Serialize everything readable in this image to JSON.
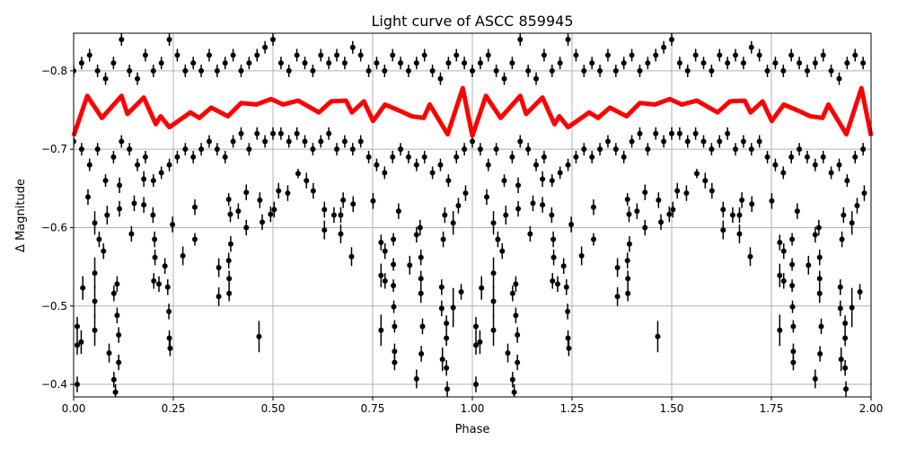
{
  "chart_data": {
    "type": "scatter",
    "title": "Light curve of ASCC 859945",
    "xlabel": "Phase",
    "ylabel": "Δ Magnitude",
    "xlim": [
      0,
      2
    ],
    "ylim": [
      -0.848,
      -0.384
    ],
    "y_inverted": true,
    "grid": true,
    "x_ticks": [
      "0.00",
      "0.25",
      "0.50",
      "0.75",
      "1.00",
      "1.25",
      "1.50",
      "1.75",
      "2.00"
    ],
    "y_ticks": [
      "−0.8",
      "−0.7",
      "−0.6",
      "−0.5",
      "−0.4"
    ],
    "y_tick_values": [
      -0.8,
      -0.7,
      -0.6,
      -0.5,
      -0.4
    ],
    "x_tick_values": [
      0,
      0.25,
      0.5,
      0.75,
      1,
      1.25,
      1.5,
      1.75,
      2
    ],
    "phase_repeated": true,
    "colors": {
      "points": "#000000",
      "model": "#ff0000",
      "grid": "#b0b0b0"
    },
    "points_phase_mag_err": [
      [
        0.009,
        -0.474,
        0.012
      ],
      [
        0.009,
        -0.45,
        0.012
      ],
      [
        0.019,
        -0.454,
        0.015
      ],
      [
        0.009,
        -0.4,
        0.01
      ],
      [
        0.023,
        -0.523,
        0.015
      ],
      [
        0.053,
        -0.542,
        0.02
      ],
      [
        0.053,
        -0.506,
        0.02
      ],
      [
        0.053,
        -0.469,
        0.02
      ],
      [
        0.036,
        -0.639,
        0.01
      ],
      [
        0.053,
        -0.606,
        0.015
      ],
      [
        0.064,
        -0.585,
        0.01
      ],
      [
        0.075,
        -0.57,
        0.01
      ],
      [
        0.084,
        -0.616,
        0.012
      ],
      [
        0.089,
        -0.44,
        0.012
      ],
      [
        0.101,
        -0.516,
        0.01
      ],
      [
        0.109,
        -0.528,
        0.01
      ],
      [
        0.109,
        -0.488,
        0.01
      ],
      [
        0.113,
        -0.463,
        0.01
      ],
      [
        0.113,
        -0.428,
        0.01
      ],
      [
        0.101,
        -0.406,
        0.01
      ],
      [
        0.105,
        -0.39,
        0.01
      ],
      [
        0.115,
        -0.654,
        0.01
      ],
      [
        0.115,
        -0.624,
        0.01
      ],
      [
        0.145,
        -0.592,
        0.01
      ],
      [
        0.152,
        -0.631,
        0.01
      ],
      [
        0.176,
        -0.629,
        0.01
      ],
      [
        0.176,
        -0.662,
        0.01
      ],
      [
        0.199,
        -0.616,
        0.01
      ],
      [
        0.203,
        -0.585,
        0.01
      ],
      [
        0.204,
        -0.562,
        0.01
      ],
      [
        0.201,
        -0.532,
        0.01
      ],
      [
        0.214,
        -0.528,
        0.01
      ],
      [
        0.229,
        -0.551,
        0.01
      ],
      [
        0.236,
        -0.524,
        0.01
      ],
      [
        0.239,
        -0.493,
        0.01
      ],
      [
        0.24,
        -0.459,
        0.01
      ],
      [
        0.242,
        -0.446,
        0.01
      ],
      [
        0.248,
        -0.604,
        0.01
      ],
      [
        0.274,
        -0.564,
        0.012
      ],
      [
        0.304,
        -0.585,
        0.008
      ],
      [
        0.304,
        -0.626,
        0.01
      ],
      [
        0.364,
        -0.549,
        0.012
      ],
      [
        0.364,
        -0.512,
        0.012
      ],
      [
        0.389,
        -0.558,
        0.01
      ],
      [
        0.39,
        -0.535,
        0.01
      ],
      [
        0.39,
        -0.516,
        0.01
      ],
      [
        0.394,
        -0.579,
        0.01
      ],
      [
        0.393,
        -0.617,
        0.01
      ],
      [
        0.389,
        -0.636,
        0.008
      ],
      [
        0.413,
        -0.621,
        0.01
      ],
      [
        0.433,
        -0.6,
        0.01
      ],
      [
        0.433,
        -0.645,
        0.01
      ],
      [
        0.465,
        -0.461,
        0.02
      ],
      [
        0.467,
        -0.635,
        0.01
      ],
      [
        0.473,
        -0.607,
        0.01
      ],
      [
        0.494,
        -0.617,
        0.01
      ],
      [
        0.503,
        -0.623,
        0.01
      ],
      [
        0.514,
        -0.647,
        0.01
      ],
      [
        0.537,
        -0.644,
        0.01
      ],
      [
        0.563,
        -0.669,
        0.006
      ],
      [
        0.584,
        -0.66,
        0.01
      ],
      [
        0.601,
        -0.647,
        0.01
      ],
      [
        0.629,
        -0.597,
        0.012
      ],
      [
        0.629,
        -0.623,
        0.01
      ],
      [
        0.653,
        -0.616,
        0.01
      ],
      [
        0.67,
        -0.592,
        0.012
      ],
      [
        0.67,
        -0.616,
        0.01
      ],
      [
        0.676,
        -0.635,
        0.01
      ],
      [
        0.697,
        -0.563,
        0.012
      ],
      [
        0.701,
        -0.63,
        0.01
      ],
      [
        0.751,
        -0.634,
        0.01
      ],
      [
        0.771,
        -0.469,
        0.02
      ],
      [
        0.771,
        -0.539,
        0.015
      ],
      [
        0.771,
        -0.581,
        0.01
      ],
      [
        0.781,
        -0.532,
        0.01
      ],
      [
        0.781,
        -0.57,
        0.01
      ],
      [
        0.802,
        -0.585,
        0.008
      ],
      [
        0.802,
        -0.553,
        0.008
      ],
      [
        0.802,
        -0.526,
        0.008
      ],
      [
        0.803,
        -0.499,
        0.008
      ],
      [
        0.805,
        -0.474,
        0.008
      ],
      [
        0.805,
        -0.442,
        0.01
      ],
      [
        0.805,
        -0.428,
        0.01
      ],
      [
        0.815,
        -0.621,
        0.01
      ],
      [
        0.843,
        -0.552,
        0.012
      ],
      [
        0.86,
        -0.407,
        0.012
      ],
      [
        0.86,
        -0.591,
        0.01
      ],
      [
        0.871,
        -0.516,
        0.012
      ],
      [
        0.869,
        -0.6,
        0.01
      ],
      [
        0.872,
        -0.439,
        0.01
      ],
      [
        0.875,
        -0.474,
        0.01
      ],
      [
        0.871,
        -0.562,
        0.01
      ],
      [
        0.871,
        -0.535,
        0.01
      ],
      [
        0.923,
        -0.497,
        0.01
      ],
      [
        0.923,
        -0.524,
        0.01
      ],
      [
        0.925,
        -0.432,
        0.015
      ],
      [
        0.927,
        -0.585,
        0.01
      ],
      [
        0.935,
        -0.478,
        0.01
      ],
      [
        0.935,
        -0.459,
        0.01
      ],
      [
        0.935,
        -0.421,
        0.01
      ],
      [
        0.937,
        -0.394,
        0.01
      ],
      [
        0.931,
        -0.616,
        0.01
      ],
      [
        0.952,
        -0.498,
        0.025
      ],
      [
        0.952,
        -0.606,
        0.015
      ],
      [
        0.972,
        -0.518,
        0.01
      ],
      [
        0.965,
        -0.628,
        0.01
      ],
      [
        0.983,
        -0.644,
        0.01
      ],
      [
        0.0,
        -0.8,
        0.008
      ],
      [
        0.0,
        -0.71,
        0.008
      ],
      [
        0.02,
        -0.81,
        0.008
      ],
      [
        0.02,
        -0.7,
        0.008
      ],
      [
        0.04,
        -0.82,
        0.008
      ],
      [
        0.04,
        -0.68,
        0.008
      ],
      [
        0.06,
        -0.8,
        0.008
      ],
      [
        0.06,
        -0.7,
        0.008
      ],
      [
        0.08,
        -0.79,
        0.008
      ],
      [
        0.08,
        -0.66,
        0.008
      ],
      [
        0.1,
        -0.81,
        0.008
      ],
      [
        0.1,
        -0.69,
        0.008
      ],
      [
        0.12,
        -0.84,
        0.008
      ],
      [
        0.12,
        -0.71,
        0.008
      ],
      [
        0.14,
        -0.8,
        0.008
      ],
      [
        0.14,
        -0.7,
        0.008
      ],
      [
        0.16,
        -0.79,
        0.008
      ],
      [
        0.16,
        -0.68,
        0.008
      ],
      [
        0.18,
        -0.82,
        0.008
      ],
      [
        0.18,
        -0.69,
        0.008
      ],
      [
        0.2,
        -0.8,
        0.008
      ],
      [
        0.2,
        -0.66,
        0.008
      ],
      [
        0.22,
        -0.81,
        0.008
      ],
      [
        0.22,
        -0.67,
        0.008
      ],
      [
        0.24,
        -0.84,
        0.008
      ],
      [
        0.24,
        -0.68,
        0.008
      ],
      [
        0.26,
        -0.82,
        0.008
      ],
      [
        0.26,
        -0.69,
        0.008
      ],
      [
        0.28,
        -0.8,
        0.008
      ],
      [
        0.28,
        -0.7,
        0.008
      ],
      [
        0.3,
        -0.81,
        0.008
      ],
      [
        0.3,
        -0.69,
        0.008
      ],
      [
        0.32,
        -0.8,
        0.008
      ],
      [
        0.32,
        -0.7,
        0.008
      ],
      [
        0.34,
        -0.82,
        0.008
      ],
      [
        0.34,
        -0.71,
        0.008
      ],
      [
        0.36,
        -0.8,
        0.008
      ],
      [
        0.36,
        -0.7,
        0.008
      ],
      [
        0.38,
        -0.81,
        0.008
      ],
      [
        0.38,
        -0.69,
        0.008
      ],
      [
        0.4,
        -0.82,
        0.008
      ],
      [
        0.4,
        -0.71,
        0.008
      ],
      [
        0.42,
        -0.8,
        0.008
      ],
      [
        0.42,
        -0.72,
        0.008
      ],
      [
        0.44,
        -0.81,
        0.008
      ],
      [
        0.44,
        -0.7,
        0.008
      ],
      [
        0.46,
        -0.82,
        0.008
      ],
      [
        0.46,
        -0.72,
        0.008
      ],
      [
        0.48,
        -0.83,
        0.008
      ],
      [
        0.48,
        -0.71,
        0.008
      ],
      [
        0.5,
        -0.84,
        0.008
      ],
      [
        0.5,
        -0.72,
        0.008
      ],
      [
        0.52,
        -0.81,
        0.008
      ],
      [
        0.52,
        -0.72,
        0.008
      ],
      [
        0.54,
        -0.8,
        0.008
      ],
      [
        0.54,
        -0.71,
        0.008
      ],
      [
        0.56,
        -0.82,
        0.008
      ],
      [
        0.56,
        -0.72,
        0.008
      ],
      [
        0.58,
        -0.81,
        0.008
      ],
      [
        0.58,
        -0.71,
        0.008
      ],
      [
        0.6,
        -0.8,
        0.008
      ],
      [
        0.6,
        -0.7,
        0.008
      ],
      [
        0.62,
        -0.82,
        0.008
      ],
      [
        0.62,
        -0.71,
        0.008
      ],
      [
        0.64,
        -0.81,
        0.008
      ],
      [
        0.64,
        -0.72,
        0.008
      ],
      [
        0.66,
        -0.82,
        0.008
      ],
      [
        0.66,
        -0.7,
        0.008
      ],
      [
        0.68,
        -0.81,
        0.008
      ],
      [
        0.68,
        -0.71,
        0.008
      ],
      [
        0.7,
        -0.83,
        0.008
      ],
      [
        0.7,
        -0.7,
        0.008
      ],
      [
        0.72,
        -0.82,
        0.008
      ],
      [
        0.72,
        -0.71,
        0.008
      ],
      [
        0.74,
        -0.8,
        0.008
      ],
      [
        0.74,
        -0.69,
        0.008
      ],
      [
        0.76,
        -0.81,
        0.008
      ],
      [
        0.76,
        -0.68,
        0.008
      ],
      [
        0.78,
        -0.8,
        0.008
      ],
      [
        0.78,
        -0.67,
        0.008
      ],
      [
        0.8,
        -0.82,
        0.008
      ],
      [
        0.8,
        -0.69,
        0.008
      ],
      [
        0.82,
        -0.81,
        0.008
      ],
      [
        0.82,
        -0.7,
        0.008
      ],
      [
        0.84,
        -0.8,
        0.008
      ],
      [
        0.84,
        -0.69,
        0.008
      ],
      [
        0.86,
        -0.81,
        0.008
      ],
      [
        0.86,
        -0.68,
        0.008
      ],
      [
        0.88,
        -0.82,
        0.008
      ],
      [
        0.88,
        -0.69,
        0.008
      ],
      [
        0.9,
        -0.8,
        0.008
      ],
      [
        0.9,
        -0.67,
        0.008
      ],
      [
        0.92,
        -0.79,
        0.008
      ],
      [
        0.92,
        -0.68,
        0.008
      ],
      [
        0.94,
        -0.81,
        0.008
      ],
      [
        0.94,
        -0.66,
        0.008
      ],
      [
        0.96,
        -0.82,
        0.008
      ],
      [
        0.96,
        -0.69,
        0.008
      ],
      [
        0.98,
        -0.81,
        0.008
      ],
      [
        0.98,
        -0.7,
        0.008
      ]
    ],
    "model_phase_mag": [
      [
        0.0,
        -0.717
      ],
      [
        0.034,
        -0.768
      ],
      [
        0.071,
        -0.74
      ],
      [
        0.12,
        -0.768
      ],
      [
        0.135,
        -0.745
      ],
      [
        0.176,
        -0.766
      ],
      [
        0.206,
        -0.732
      ],
      [
        0.218,
        -0.742
      ],
      [
        0.24,
        -0.728
      ],
      [
        0.293,
        -0.747
      ],
      [
        0.315,
        -0.74
      ],
      [
        0.345,
        -0.753
      ],
      [
        0.387,
        -0.742
      ],
      [
        0.42,
        -0.759
      ],
      [
        0.458,
        -0.757
      ],
      [
        0.495,
        -0.764
      ],
      [
        0.525,
        -0.757
      ],
      [
        0.563,
        -0.762
      ],
      [
        0.615,
        -0.747
      ],
      [
        0.646,
        -0.761
      ],
      [
        0.683,
        -0.762
      ],
      [
        0.698,
        -0.747
      ],
      [
        0.728,
        -0.761
      ],
      [
        0.751,
        -0.736
      ],
      [
        0.781,
        -0.757
      ],
      [
        0.818,
        -0.749
      ],
      [
        0.848,
        -0.742
      ],
      [
        0.878,
        -0.74
      ],
      [
        0.893,
        -0.757
      ],
      [
        0.938,
        -0.719
      ],
      [
        0.976,
        -0.778
      ],
      [
        1.0,
        -0.717
      ]
    ]
  }
}
